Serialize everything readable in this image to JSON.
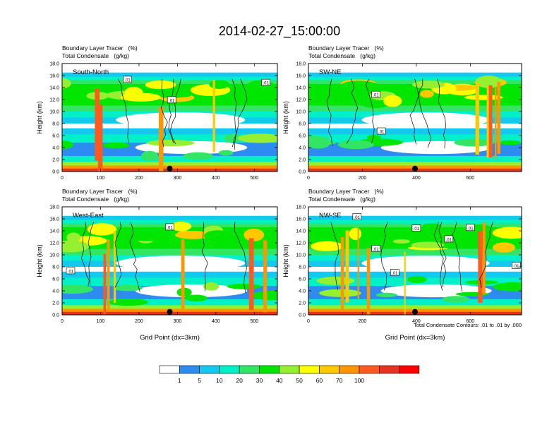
{
  "page": {
    "title": "2014-02-27_15:00:00",
    "footnote": "Total Condensate Contours: .01 to .01 by .000",
    "colorbar": {
      "labels": [
        "1",
        "5",
        "10",
        "20",
        "30",
        "40",
        "50",
        "60",
        "70",
        "100"
      ],
      "colors": [
        "#ffffff",
        "#2e8cf0",
        "#14c8f0",
        "#00f0c8",
        "#32e664",
        "#00e600",
        "#96f032",
        "#ffff00",
        "#ffc800",
        "#ff9600",
        "#ff5a1e",
        "#e6321e",
        "#ff0000"
      ]
    }
  },
  "chart_data": [
    {
      "type": "heatmap",
      "id": "south-north",
      "label_line1": "Boundary Layer Tracer   (%)",
      "label_line2": "Total Condensate   (g/kg)",
      "panel_label": "South-North",
      "ylabel": "Height (km)",
      "xlabel": "",
      "xlim": [
        0,
        560
      ],
      "ylim": [
        0,
        18
      ],
      "xticks": [
        0,
        100,
        200,
        300,
        400,
        500
      ],
      "yticks": [
        "0.0",
        "2.0",
        "4.0",
        "6.0",
        "8.0",
        "10.0",
        "12.0",
        "14.0",
        "16.0",
        "18.0"
      ],
      "marker_x": 280,
      "contour_labels": [
        {
          "text": ".01",
          "x": 170,
          "y": 15.3
        },
        {
          "text": ".01",
          "x": 285,
          "y": 11.9
        },
        {
          "text": ".01",
          "x": 530,
          "y": 14.8
        }
      ]
    },
    {
      "type": "heatmap",
      "id": "sw-ne",
      "label_line1": "Boundary Layer Tracer   (%)",
      "label_line2": "Total Condensate   (g/kg)",
      "panel_label": "SW-NE",
      "ylabel": "Height (km)",
      "xlabel": "",
      "xlim": [
        0,
        790
      ],
      "ylim": [
        0,
        18
      ],
      "xticks": [
        0,
        200,
        400,
        600
      ],
      "yticks": [
        "0.0",
        "2.0",
        "4.0",
        "6.0",
        "8.0",
        "10.0",
        "12.0",
        "14.0",
        "16.0",
        "18.0"
      ],
      "marker_x": 395,
      "contour_labels": [
        {
          "text": ".01",
          "x": 250,
          "y": 12.8
        },
        {
          "text": ".01",
          "x": 270,
          "y": 6.7
        }
      ]
    },
    {
      "type": "heatmap",
      "id": "west-east",
      "label_line1": "Boundary Layer Tracer   (%)",
      "label_line2": "Total Condensate   (g/kg)",
      "panel_label": "West-East",
      "ylabel": "Height (km)",
      "xlabel": "Grid Point (dx=3km)",
      "xlim": [
        0,
        560
      ],
      "ylim": [
        0,
        18
      ],
      "xticks": [
        0,
        100,
        200,
        300,
        400,
        500
      ],
      "yticks": [
        "0.0",
        "2.0",
        "4.0",
        "6.0",
        "8.0",
        "10.0",
        "12.0",
        "14.0",
        "16.0",
        "18.0"
      ],
      "marker_x": 280,
      "contour_labels": [
        {
          "text": ".01",
          "x": 280,
          "y": 14.6
        },
        {
          "text": ".01",
          "x": 22,
          "y": 7.3
        }
      ]
    },
    {
      "type": "heatmap",
      "id": "nw-se",
      "label_line1": "Boundary Layer Tracer   (%)",
      "label_line2": "Total Condensate   (g/kg)",
      "panel_label": "NW-SE",
      "ylabel": "Height (km)",
      "xlabel": "Grid Point (dx=3km)",
      "xlim": [
        0,
        790
      ],
      "ylim": [
        0,
        18
      ],
      "xticks": [
        0,
        200,
        400,
        600
      ],
      "yticks": [
        "0.0",
        "2.0",
        "4.0",
        "6.0",
        "8.0",
        "10.0",
        "12.0",
        "14.0",
        "16.0",
        "18.0"
      ],
      "marker_x": 395,
      "contour_labels": [
        {
          "text": ".01",
          "x": 180,
          "y": 16.3
        },
        {
          "text": ".01",
          "x": 250,
          "y": 11.0
        },
        {
          "text": ".01",
          "x": 320,
          "y": 7.0
        },
        {
          "text": ".01",
          "x": 400,
          "y": 14.4
        },
        {
          "text": ".01",
          "x": 520,
          "y": 12.6
        },
        {
          "text": ".01",
          "x": 600,
          "y": 14.5
        },
        {
          "text": ".01",
          "x": 770,
          "y": 8.2
        }
      ]
    }
  ]
}
